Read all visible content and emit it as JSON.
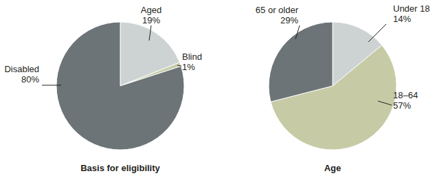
{
  "chart_data": [
    {
      "type": "pie",
      "title": "Basis for eligibility",
      "categories": [
        "Aged",
        "Blind",
        "Disabled"
      ],
      "values": [
        19,
        1,
        80
      ],
      "value_labels": [
        "19%",
        "1%",
        "80%"
      ],
      "colors": [
        "#cdd2d3",
        "#c6cba6",
        "#6c7478"
      ],
      "data_labels": true
    },
    {
      "type": "pie",
      "title": "Age",
      "categories": [
        "Under 18",
        "18–64",
        "65 or older"
      ],
      "values": [
        14,
        57,
        29
      ],
      "value_labels": [
        "14%",
        "57%",
        "29%"
      ],
      "colors": [
        "#cdd2d3",
        "#c6cba6",
        "#6c7478"
      ],
      "data_labels": true
    }
  ]
}
